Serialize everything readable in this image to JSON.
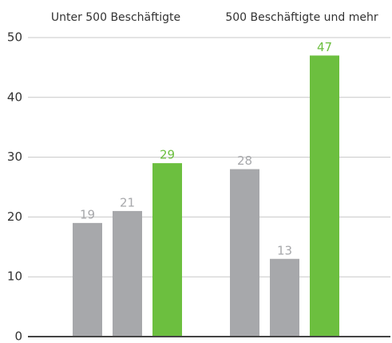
{
  "chart_data": {
    "type": "bar",
    "categories": [
      "Unter 500 Beschäftigte",
      "500 Beschäftigte und mehr"
    ],
    "series": [
      {
        "color": "#a7a8ab",
        "values": [
          19,
          28
        ]
      },
      {
        "color": "#a7a8ab",
        "values": [
          21,
          13
        ]
      },
      {
        "color": "#6cbf3f",
        "values": [
          29,
          47
        ]
      }
    ],
    "ylim": [
      0,
      50
    ],
    "yticks": [
      0,
      10,
      20,
      30,
      40,
      50
    ],
    "grid": true
  }
}
